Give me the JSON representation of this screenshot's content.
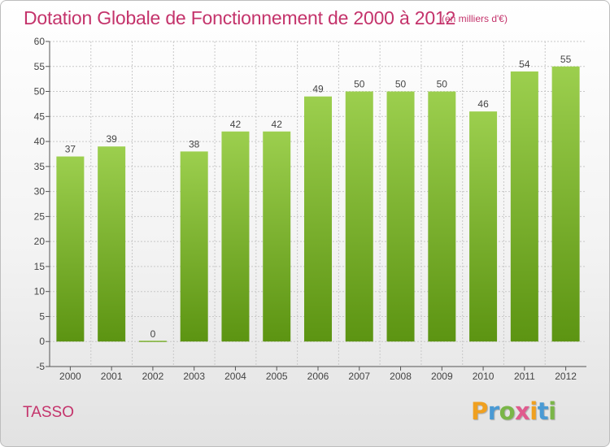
{
  "title": "Dotation Globale de Fonctionnement de 2000 à 2012",
  "unit_label": "(en milliers d'€)",
  "commune": "TASSO",
  "logo": {
    "letters": [
      "P",
      "r",
      "o",
      "x",
      "i",
      "t",
      "i"
    ],
    "colors": [
      "#f0a020",
      "#4a9ad4",
      "#7ab648",
      "#e05b8e",
      "#f0a020",
      "#4a9ad4",
      "#7ab648"
    ]
  },
  "colors": {
    "accent": "#c4336b",
    "bar_top": "#9ccf4e",
    "bar_bottom": "#5c9412",
    "grid": "#c8c8c8",
    "axis": "#555555"
  },
  "chart_data": {
    "type": "bar",
    "title": "Dotation Globale de Fonctionnement de 2000 à 2012",
    "xlabel": "",
    "ylabel": "",
    "categories": [
      "2000",
      "2001",
      "2002",
      "2003",
      "2004",
      "2005",
      "2006",
      "2007",
      "2008",
      "2009",
      "2010",
      "2011",
      "2012"
    ],
    "values": [
      37,
      39,
      0,
      38,
      42,
      42,
      49,
      50,
      50,
      50,
      46,
      54,
      55
    ],
    "ylim": [
      -5,
      60
    ],
    "yticks": [
      -5,
      0,
      5,
      10,
      15,
      20,
      25,
      30,
      35,
      40,
      45,
      50,
      55,
      60
    ],
    "grid": true,
    "legend": "none"
  }
}
